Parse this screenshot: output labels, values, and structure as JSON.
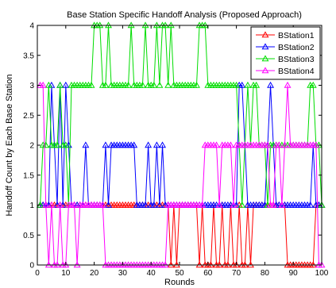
{
  "chart_data": {
    "type": "line",
    "title": "Base Station Specific Handoff Analysis (Proposed Approach)",
    "xlabel": "Rounds",
    "ylabel": "Handoff Count by Each Base Station",
    "xlim": [
      0,
      100
    ],
    "ylim": [
      0,
      4
    ],
    "xticks": [
      "0",
      "10",
      "20",
      "30",
      "40",
      "50",
      "60",
      "70",
      "80",
      "90",
      "100"
    ],
    "yticks": [
      "0",
      "0.5",
      "1",
      "1.5",
      "2",
      "2.5",
      "3",
      "3.5",
      "4"
    ],
    "grid": false,
    "legend_position": "top-right",
    "marker": "triangle-open",
    "series": [
      {
        "name": "BStation1",
        "color": "#ff0000",
        "x": [
          1,
          2,
          3,
          4,
          5,
          6,
          7,
          8,
          9,
          10,
          11,
          12,
          13,
          14,
          15,
          16,
          17,
          18,
          19,
          20,
          21,
          22,
          23,
          24,
          25,
          26,
          27,
          28,
          29,
          30,
          31,
          32,
          33,
          34,
          35,
          36,
          37,
          38,
          39,
          40,
          41,
          42,
          43,
          44,
          45,
          46,
          47,
          48,
          49,
          50,
          51,
          52,
          53,
          54,
          55,
          56,
          57,
          58,
          59,
          60,
          61,
          62,
          63,
          64,
          65,
          66,
          67,
          68,
          69,
          70,
          71,
          72,
          73,
          74,
          75,
          76,
          77,
          78,
          79,
          80,
          81,
          82,
          83,
          84,
          85,
          86,
          87,
          88,
          89,
          90,
          91,
          92,
          93,
          94,
          95,
          96,
          97,
          98,
          99,
          100
        ],
        "values": [
          1,
          1,
          1,
          1,
          1,
          1,
          1,
          1,
          1,
          1,
          1,
          1,
          1,
          1,
          1,
          1,
          1,
          1,
          1,
          1,
          1,
          1,
          1,
          1,
          1,
          1,
          1,
          1,
          1,
          1,
          1,
          1,
          1,
          1,
          1,
          1,
          1,
          1,
          1,
          1,
          1,
          1,
          1,
          1,
          1,
          1,
          0,
          1,
          0,
          1,
          1,
          1,
          1,
          1,
          1,
          1,
          0,
          1,
          0,
          0,
          0,
          1,
          0,
          0,
          1,
          0,
          0,
          1,
          0,
          0,
          1,
          0,
          0,
          1,
          0,
          1,
          1,
          1,
          1,
          1,
          1,
          1,
          1,
          1,
          1,
          1,
          1,
          0,
          0,
          0,
          0,
          0,
          0,
          0,
          0,
          0,
          0,
          1,
          1,
          1
        ]
      },
      {
        "name": "BStation2",
        "color": "#0000ff",
        "x": [
          1,
          2,
          3,
          4,
          5,
          6,
          7,
          8,
          9,
          10,
          11,
          12,
          13,
          14,
          15,
          16,
          17,
          18,
          19,
          20,
          21,
          22,
          23,
          24,
          25,
          26,
          27,
          28,
          29,
          30,
          31,
          32,
          33,
          34,
          35,
          36,
          37,
          38,
          39,
          40,
          41,
          42,
          43,
          44,
          45,
          46,
          47,
          48,
          49,
          50,
          51,
          52,
          53,
          54,
          55,
          56,
          57,
          58,
          59,
          60,
          61,
          62,
          63,
          64,
          65,
          66,
          67,
          68,
          69,
          70,
          71,
          72,
          73,
          74,
          75,
          76,
          77,
          78,
          79,
          80,
          81,
          82,
          83,
          84,
          85,
          86,
          87,
          88,
          89,
          90,
          91,
          92,
          93,
          94,
          95,
          96,
          97,
          98,
          99,
          100
        ],
        "values": [
          1,
          1,
          1,
          1,
          3,
          2,
          1,
          3,
          1,
          3,
          2,
          1,
          1,
          1,
          1,
          1,
          2,
          1,
          1,
          1,
          1,
          1,
          1,
          2,
          1,
          2,
          2,
          2,
          2,
          2,
          2,
          2,
          2,
          2,
          1,
          1,
          1,
          1,
          2,
          1,
          1,
          2,
          1,
          2,
          1,
          1,
          1,
          1,
          1,
          1,
          1,
          1,
          1,
          1,
          1,
          1,
          1,
          1,
          1,
          1,
          1,
          1,
          1,
          1,
          1,
          1,
          1,
          1,
          1,
          1,
          3,
          3,
          2,
          1,
          1,
          1,
          1,
          1,
          1,
          1,
          2,
          3,
          2,
          1,
          1,
          1,
          1,
          1,
          1,
          1,
          1,
          1,
          1,
          1,
          1,
          1,
          2,
          1,
          1,
          1
        ]
      },
      {
        "name": "BStation3",
        "color": "#00dd00",
        "x": [
          1,
          2,
          3,
          4,
          5,
          6,
          7,
          8,
          9,
          10,
          11,
          12,
          13,
          14,
          15,
          16,
          17,
          18,
          19,
          20,
          21,
          22,
          23,
          24,
          25,
          26,
          27,
          28,
          29,
          30,
          31,
          32,
          33,
          34,
          35,
          36,
          37,
          38,
          39,
          40,
          41,
          42,
          43,
          44,
          45,
          46,
          47,
          48,
          49,
          50,
          51,
          52,
          53,
          54,
          55,
          56,
          57,
          58,
          59,
          60,
          61,
          62,
          63,
          64,
          65,
          66,
          67,
          68,
          69,
          70,
          71,
          72,
          73,
          74,
          75,
          76,
          77,
          78,
          79,
          80,
          81,
          82,
          83,
          84,
          85,
          86,
          87,
          88,
          89,
          90,
          91,
          92,
          93,
          94,
          95,
          96,
          97,
          98,
          99,
          100
        ],
        "values": [
          1,
          2,
          2,
          3,
          2,
          2,
          2,
          3,
          2,
          2,
          1,
          3,
          3,
          3,
          3,
          3,
          3,
          3,
          3,
          4,
          4,
          4,
          3,
          3,
          4,
          3,
          3,
          3,
          3,
          3,
          3,
          3,
          4,
          3,
          3,
          3,
          3,
          4,
          3,
          3,
          3,
          4,
          3,
          4,
          4,
          3,
          4,
          3,
          3,
          3,
          3,
          3,
          3,
          3,
          3,
          3,
          4,
          4,
          4,
          3,
          3,
          3,
          3,
          3,
          3,
          3,
          3,
          3,
          3,
          3,
          2,
          1,
          2,
          3,
          2,
          3,
          3,
          2,
          2,
          2,
          1,
          2,
          2,
          2,
          2,
          2,
          2,
          2,
          2,
          2,
          2,
          2,
          2,
          2,
          2,
          3,
          3,
          2,
          2,
          1
        ]
      },
      {
        "name": "BStation4",
        "color": "#ff00ff",
        "x": [
          1,
          2,
          3,
          4,
          5,
          6,
          7,
          8,
          9,
          10,
          11,
          12,
          13,
          14,
          15,
          16,
          17,
          18,
          19,
          20,
          21,
          22,
          23,
          24,
          25,
          26,
          27,
          28,
          29,
          30,
          31,
          32,
          33,
          34,
          35,
          36,
          37,
          38,
          39,
          40,
          41,
          42,
          43,
          44,
          45,
          46,
          47,
          48,
          49,
          50,
          51,
          52,
          53,
          54,
          55,
          56,
          57,
          58,
          59,
          60,
          61,
          62,
          63,
          64,
          65,
          66,
          67,
          68,
          69,
          70,
          71,
          72,
          73,
          74,
          75,
          76,
          77,
          78,
          79,
          80,
          81,
          82,
          83,
          84,
          85,
          86,
          87,
          88,
          89,
          90,
          91,
          92,
          93,
          94,
          95,
          96,
          97,
          98,
          99,
          100
        ],
        "values": [
          3,
          3,
          1,
          0,
          1,
          0,
          0,
          1,
          0,
          0,
          1,
          1,
          1,
          0,
          1,
          1,
          1,
          1,
          1,
          1,
          1,
          1,
          1,
          0,
          0,
          0,
          0,
          0,
          0,
          0,
          0,
          0,
          0,
          0,
          0,
          0,
          0,
          0,
          0,
          0,
          0,
          0,
          0,
          0,
          0,
          1,
          1,
          1,
          1,
          1,
          1,
          1,
          1,
          1,
          1,
          1,
          1,
          1,
          2,
          2,
          2,
          2,
          2,
          1,
          2,
          2,
          2,
          2,
          1,
          2,
          2,
          2,
          2,
          2,
          2,
          2,
          2,
          2,
          2,
          2,
          2,
          1,
          1,
          2,
          2,
          1,
          2,
          3,
          2,
          2,
          2,
          2,
          2,
          2,
          2,
          2,
          2,
          2,
          0,
          0
        ]
      }
    ]
  }
}
